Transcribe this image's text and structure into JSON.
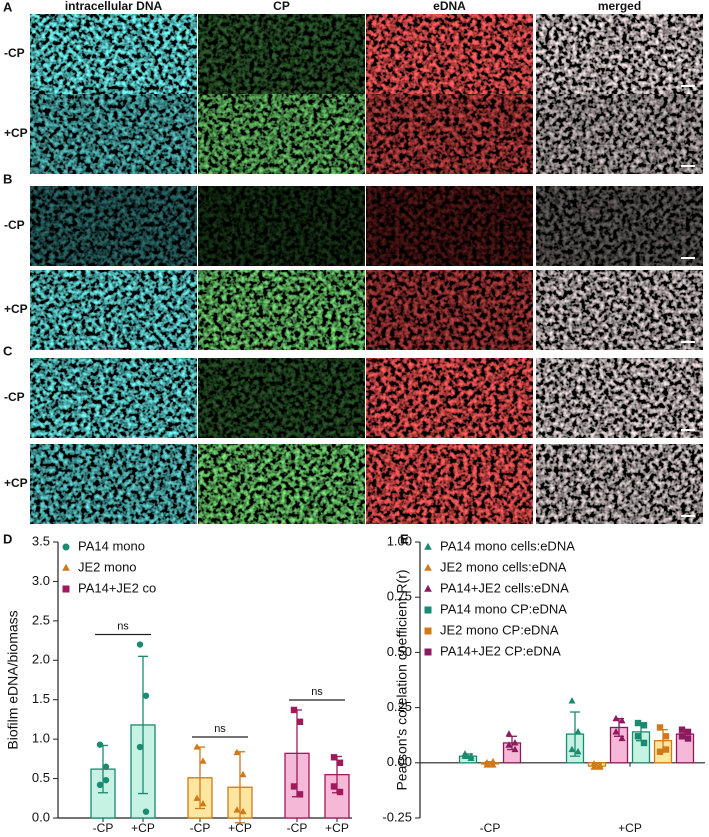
{
  "columns": [
    "intracellular DNA",
    "CP",
    "eDNA",
    "merged"
  ],
  "panels": [
    {
      "label": "A",
      "rows": [
        "-CP",
        "+CP"
      ]
    },
    {
      "label": "B",
      "rows": [
        "-CP",
        "+CP"
      ]
    },
    {
      "label": "C",
      "rows": [
        "-CP",
        "+CP"
      ]
    }
  ],
  "chart_data": [
    {
      "type": "bar",
      "panel": "D",
      "y_label": "Biofilm eDNA/biomass",
      "categories": [
        "-CP",
        "+CP",
        "-CP",
        "+CP",
        "-CP",
        "+CP"
      ],
      "ylim": [
        0,
        3.5
      ],
      "yticks": [
        {
          "value": 0,
          "label": "0.0"
        },
        0.5,
        {
          "value": 1,
          "label": "1.0"
        },
        1.5,
        {
          "value": 2,
          "label": "2.0"
        },
        2.5,
        {
          "value": 3,
          "label": "3.0"
        },
        3.5
      ],
      "legend": "top-left",
      "annotations": [
        "ns",
        "ns",
        "ns"
      ],
      "series": [
        {
          "name": "PA14 mono",
          "color": "#1a8a70",
          "fill": "#c6f2e3",
          "marker": "circle",
          "values": [
            0.62,
            1.18,
            null,
            null,
            null,
            null
          ],
          "errors": [
            0.3,
            0.87,
            null,
            null,
            null,
            null
          ],
          "points": [
            [
              0.93,
              0.48,
              0.42,
              0.65
            ],
            [
              2.2,
              1.55,
              0.9,
              0.08
            ],
            null,
            null,
            null,
            null
          ]
        },
        {
          "name": "JE2 mono",
          "color": "#d0791a",
          "fill": "#fde6a0",
          "marker": "triangle",
          "values": [
            null,
            null,
            0.51,
            0.39,
            null,
            null
          ],
          "errors": [
            null,
            null,
            0.39,
            0.45,
            null,
            null
          ],
          "points": [
            null,
            null,
            [
              0.9,
              0.72,
              0.25,
              0.18
            ],
            [
              0.83,
              0.55,
              0.1,
              0.08
            ],
            null,
            null
          ]
        },
        {
          "name": "PA14+JE2 co",
          "color": "#a0195a",
          "fill": "#f5b8d6",
          "marker": "square",
          "values": [
            null,
            null,
            null,
            null,
            0.82,
            0.55
          ],
          "errors": [
            null,
            null,
            null,
            null,
            0.55,
            0.23
          ],
          "points": [
            null,
            null,
            null,
            null,
            [
              1.37,
              1.22,
              0.4,
              0.3
            ],
            [
              0.77,
              0.7,
              0.4,
              0.33
            ]
          ]
        }
      ]
    },
    {
      "type": "bar",
      "panel": "E",
      "y_label": "Pearson's corelation coefficient R(r)",
      "categories": [
        "-CP",
        "+CP"
      ],
      "ylim": [
        -0.25,
        1.0
      ],
      "yticks": [
        -0.25,
        {
          "value": 0,
          "label": "0.00"
        },
        0.25,
        {
          "value": 0.5,
          "label": "0.50"
        },
        0.75,
        {
          "value": 1,
          "label": "1.00"
        }
      ],
      "legend": "top-left",
      "series": [
        {
          "name": "PA14 mono cells:eDNA",
          "color": "#1a8a70",
          "fill": "#c6f2e3",
          "marker": "triangle",
          "values": [
            0.03,
            0.13
          ],
          "errors": [
            0.01,
            0.1
          ],
          "points": [
            [
              0.04,
              0.03,
              0.03,
              0.02
            ],
            [
              0.28,
              0.14,
              0.06,
              0.05
            ]
          ]
        },
        {
          "name": "JE2 mono cells:eDNA",
          "color": "#d0791a",
          "fill": "#fde6a0",
          "marker": "triangle",
          "values": [
            -0.005,
            -0.015
          ],
          "errors": [
            0.01,
            0.01
          ],
          "points": [
            [
              0,
              -0.01,
              -0.01,
              0.005
            ],
            [
              -0.005,
              -0.02,
              -0.02,
              -0.015
            ]
          ]
        },
        {
          "name": "PA14+JE2 cells:eDNA",
          "color": "#8b1b5e",
          "fill": "#f5b8d6",
          "marker": "triangle",
          "values": [
            0.09,
            0.16
          ],
          "errors": [
            0.03,
            0.04
          ],
          "points": [
            [
              0.13,
              0.09,
              0.08,
              0.06
            ],
            [
              0.2,
              0.19,
              0.14,
              0.11
            ]
          ]
        },
        {
          "name": "PA14 mono CP:eDNA",
          "color": "#1a8a70",
          "fill": "#c6f2e3",
          "marker": "square",
          "values": [
            null,
            0.14
          ],
          "errors": [
            null,
            0.04
          ],
          "points": [
            null,
            [
              0.18,
              0.17,
              0.12,
              0.09
            ]
          ]
        },
        {
          "name": "JE2 mono CP:eDNA",
          "color": "#d0791a",
          "fill": "#fde6a0",
          "marker": "square",
          "values": [
            null,
            0.1
          ],
          "errors": [
            null,
            0.05
          ],
          "points": [
            null,
            [
              0.16,
              0.12,
              0.05,
              0.06
            ]
          ]
        },
        {
          "name": "PA14+JE2 CP:eDNA",
          "color": "#8b1b5e",
          "fill": "#f5b8d6",
          "marker": "square",
          "values": [
            null,
            0.13
          ],
          "errors": [
            null,
            0.02
          ],
          "points": [
            null,
            [
              0.15,
              0.14,
              0.12,
              0.11
            ]
          ]
        }
      ]
    }
  ]
}
